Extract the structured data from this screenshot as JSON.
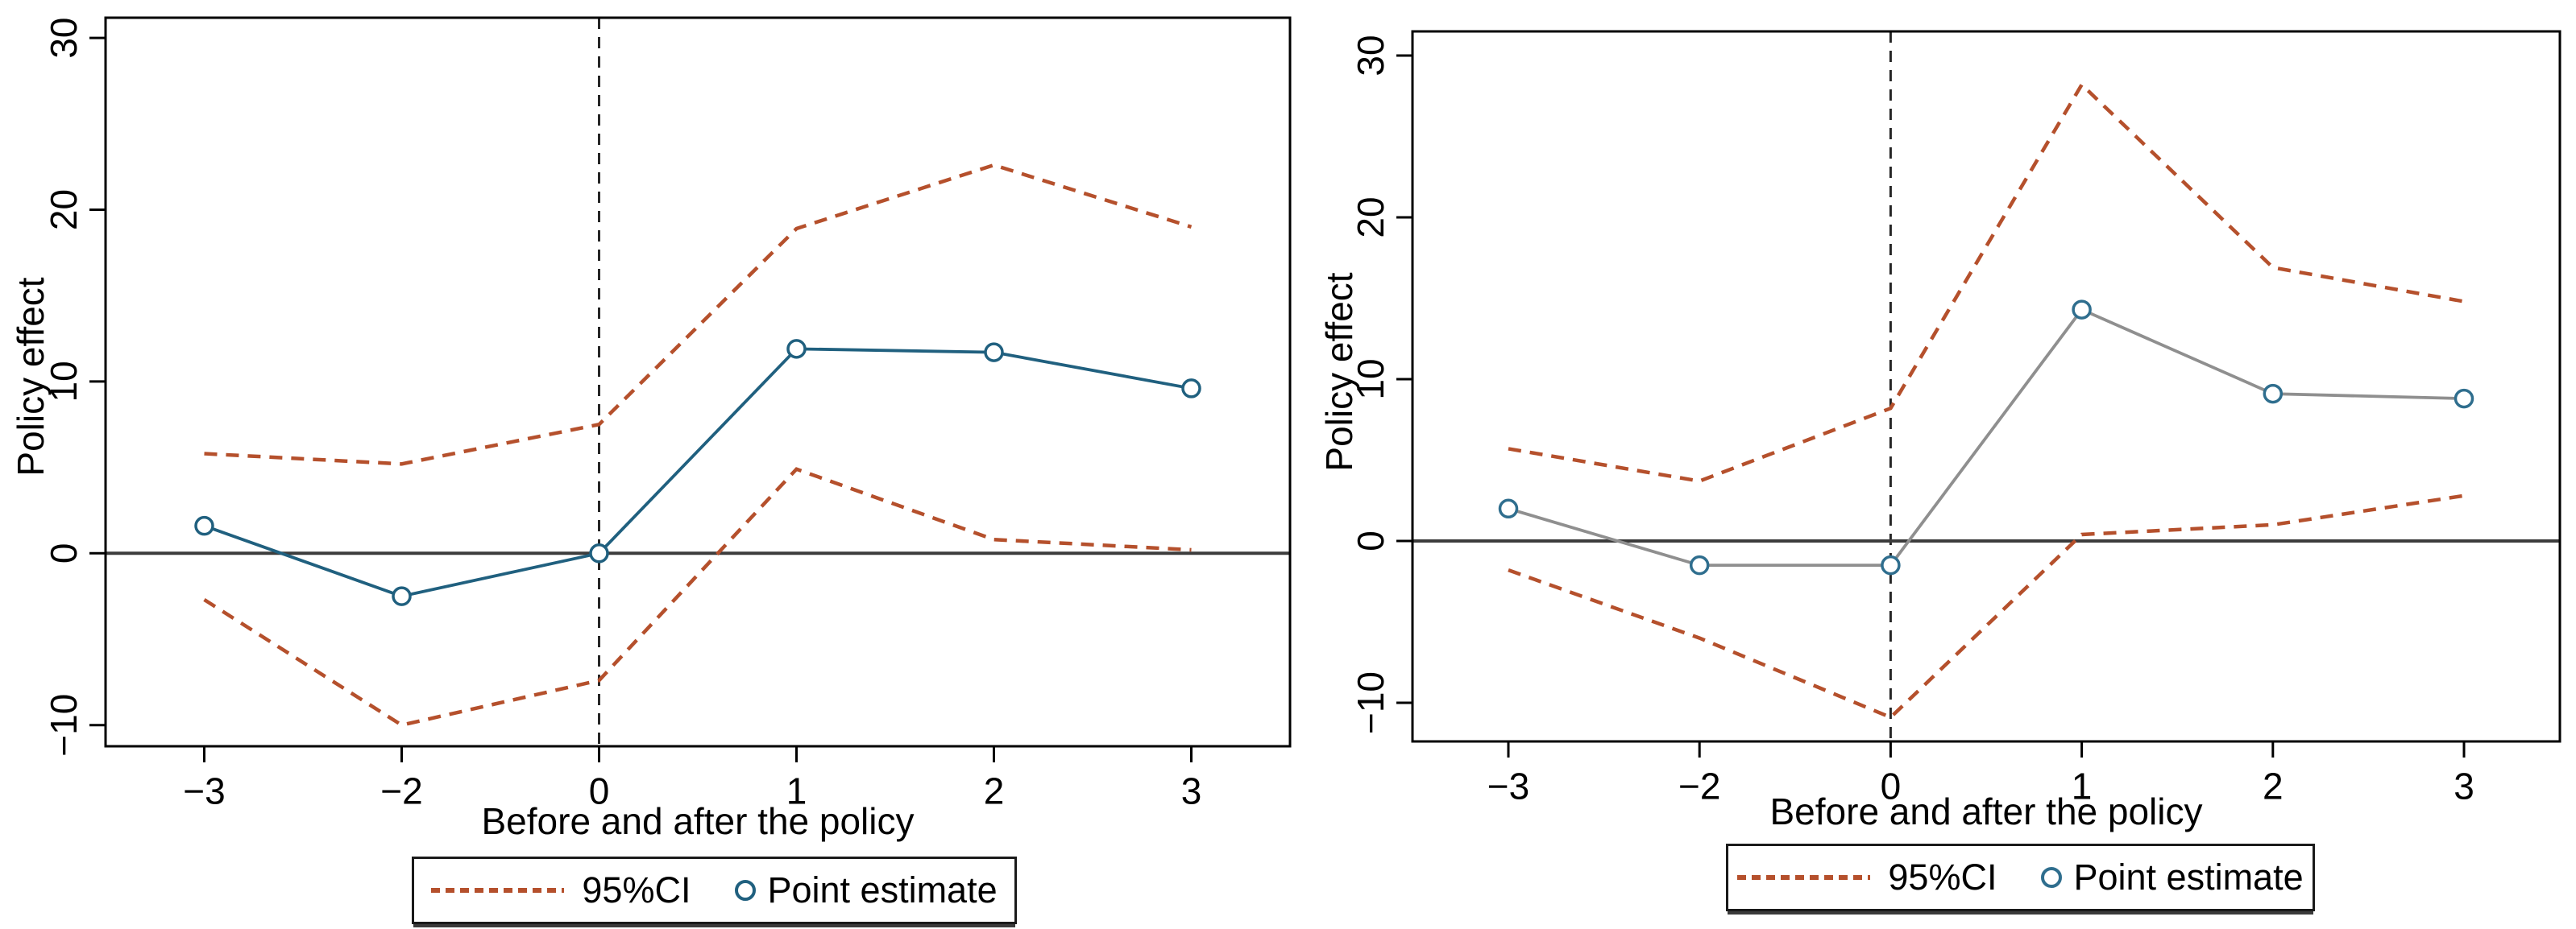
{
  "figure": {
    "background": "#ffffff",
    "axis_color": "#000000",
    "zero_line_color": "#3c3c3c",
    "refline_color": "#262626",
    "ci_color": "#b5502c",
    "panels": [
      {
        "name": "left",
        "ylabel": "Policy effect",
        "xlabel": "Before and after the policy",
        "y_tick_labels": [
          "30",
          "20",
          "10",
          "0",
          "−10"
        ],
        "x_tick_labels": [
          "−3",
          "−2",
          "0",
          "1",
          "2",
          "3"
        ],
        "legend": {
          "ci": "95%CI",
          "point": "Point estimate"
        }
      },
      {
        "name": "right",
        "ylabel": "Policy effect",
        "xlabel": "Before and after the policy",
        "y_tick_labels": [
          "30",
          "20",
          "10",
          "0",
          "−10"
        ],
        "x_tick_labels": [
          "−3",
          "−2",
          "0",
          "1",
          "2",
          "3"
        ],
        "legend": {
          "ci": "95%CI",
          "point": "Point estimate"
        }
      }
    ]
  },
  "chart_data": [
    {
      "type": "line",
      "title": "",
      "xlabel": "Before and after the policy",
      "ylabel": "Policy effect",
      "categories": [
        -3,
        -2,
        0,
        1,
        2,
        3
      ],
      "x_tick_labels": [
        "−3",
        "−2",
        "0",
        "1",
        "2",
        "3"
      ],
      "y_ticks": [
        30,
        20,
        10,
        0,
        -10
      ],
      "ylim": [
        -11.2,
        31.2
      ],
      "grid": false,
      "legend_position": "bottom",
      "legend": [
        "95%CI",
        "Point estimate"
      ],
      "reference_lines": {
        "horizontal_y": 0,
        "vertical_at_category": 0
      },
      "vline_category_index": 2,
      "series": [
        {
          "name": "95%CI upper",
          "style": "dashed",
          "color": "#b5502c",
          "values": [
            5.8,
            5.2,
            7.5,
            18.9,
            22.6,
            19.0
          ]
        },
        {
          "name": "95%CI lower",
          "style": "dashed",
          "color": "#b5502c",
          "values": [
            -2.7,
            -10.0,
            -7.4,
            4.9,
            0.8,
            0.2
          ]
        },
        {
          "name": "Point estimate",
          "style": "solid-markers",
          "color": "#20607f",
          "marker": "open-circle",
          "marker_color": "#20607f",
          "values": [
            1.6,
            -2.5,
            0.0,
            11.9,
            11.7,
            9.6
          ]
        }
      ]
    },
    {
      "type": "line",
      "title": "",
      "xlabel": "Before and after the policy",
      "ylabel": "Policy effect",
      "categories": [
        -3,
        -2,
        0,
        1,
        2,
        3
      ],
      "x_tick_labels": [
        "−3",
        "−2",
        "0",
        "1",
        "2",
        "3"
      ],
      "y_ticks": [
        30,
        20,
        10,
        0,
        -10
      ],
      "ylim": [
        -12.4,
        31.5
      ],
      "grid": false,
      "legend_position": "bottom",
      "legend": [
        "95%CI",
        "Point estimate"
      ],
      "reference_lines": {
        "horizontal_y": 0,
        "vertical_at_category": 0
      },
      "vline_category_index": 2,
      "series": [
        {
          "name": "95%CI upper",
          "style": "dashed",
          "color": "#b5502c",
          "values": [
            5.7,
            3.7,
            8.2,
            28.2,
            16.9,
            14.8
          ]
        },
        {
          "name": "95%CI lower",
          "style": "dashed",
          "color": "#b5502c",
          "values": [
            -1.8,
            -6.0,
            -10.9,
            0.4,
            1.0,
            2.8
          ]
        },
        {
          "name": "Point estimate",
          "style": "solid-markers",
          "color": "#8f8f8f",
          "marker": "open-circle",
          "marker_color": "#2f6e8e",
          "values": [
            2.0,
            -1.5,
            -1.5,
            14.3,
            9.1,
            8.8
          ]
        }
      ]
    }
  ]
}
